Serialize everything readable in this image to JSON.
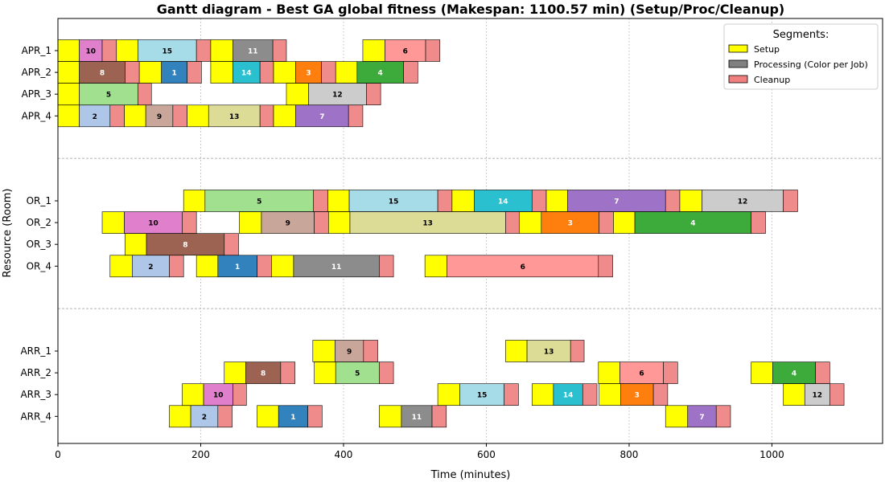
{
  "chart_data": {
    "type": "gantt",
    "title": "Gantt diagram - Best GA global fitness (Makespan: 1100.57 min) (Setup/Proc/Cleanup)",
    "xlabel": "Time (minutes)",
    "ylabel": "Resource (Room)",
    "xlim": [
      0,
      1155
    ],
    "xticks": [
      0,
      200,
      400,
      600,
      800,
      1000
    ],
    "grid": "vertical dotted",
    "legend": {
      "title": "Segments:",
      "placement": "top-right",
      "entries": [
        {
          "label": "Setup",
          "color": "#ffff00"
        },
        {
          "label": "Processing (Color per Job)",
          "color": "#808080"
        },
        {
          "label": "Cleanup",
          "color": "#f08080"
        }
      ]
    },
    "colors": {
      "setup": "#ffff00",
      "cleanup": "#f08b8b",
      "jobs": {
        "1": "#3182bd",
        "2": "#aec7e8",
        "3": "#ff7f0e",
        "4": "#3cab3c",
        "5": "#a0e08f",
        "6": "#ff9896",
        "7": "#9e72c6",
        "8": "#9c6352",
        "9": "#c9a69a",
        "10": "#e07fcc",
        "11": "#8c8c8c",
        "12": "#cccccc",
        "13": "#dcdc96",
        "14": "#2bc0cf",
        "15": "#a6dbe8"
      }
    },
    "resources": [
      "APR_1",
      "APR_2",
      "APR_3",
      "APR_4",
      "OR_1",
      "OR_2",
      "OR_3",
      "OR_4",
      "ARR_1",
      "ARR_2",
      "ARR_3",
      "ARR_4"
    ],
    "groups": [
      [
        "APR_1",
        "APR_2",
        "APR_3",
        "APR_4"
      ],
      [
        "OR_1",
        "OR_2",
        "OR_3",
        "OR_4"
      ],
      [
        "ARR_1",
        "ARR_2",
        "ARR_3",
        "ARR_4"
      ]
    ],
    "tasks": [
      {
        "resource": "APR_1",
        "job": "10",
        "setup": [
          0,
          30
        ],
        "proc": [
          30,
          62
        ],
        "cleanup": [
          62,
          82
        ]
      },
      {
        "resource": "APR_1",
        "job": "15",
        "setup": [
          82,
          112
        ],
        "proc": [
          112,
          194
        ],
        "cleanup": [
          194,
          214
        ]
      },
      {
        "resource": "APR_1",
        "job": "11",
        "setup": [
          214,
          245
        ],
        "proc": [
          245,
          301
        ],
        "cleanup": [
          301,
          320
        ]
      },
      {
        "resource": "APR_1",
        "job": "6",
        "setup": [
          427,
          458
        ],
        "proc": [
          458,
          515
        ],
        "cleanup": [
          515,
          535
        ]
      },
      {
        "resource": "APR_2",
        "job": "8",
        "setup": [
          0,
          30
        ],
        "proc": [
          30,
          94
        ],
        "cleanup": [
          94,
          114
        ]
      },
      {
        "resource": "APR_2",
        "job": "1",
        "setup": [
          114,
          145
        ],
        "proc": [
          145,
          181
        ],
        "cleanup": [
          181,
          201
        ]
      },
      {
        "resource": "APR_2",
        "job": "14",
        "setup": [
          214,
          245
        ],
        "proc": [
          245,
          283
        ],
        "cleanup": [
          283,
          302
        ]
      },
      {
        "resource": "APR_2",
        "job": "3",
        "setup": [
          302,
          333
        ],
        "proc": [
          333,
          369
        ],
        "cleanup": [
          369,
          389
        ]
      },
      {
        "resource": "APR_2",
        "job": "4",
        "setup": [
          389,
          419
        ],
        "proc": [
          419,
          484
        ],
        "cleanup": [
          484,
          504
        ]
      },
      {
        "resource": "APR_3",
        "job": "5",
        "setup": [
          0,
          30
        ],
        "proc": [
          30,
          112
        ],
        "cleanup": [
          112,
          131
        ]
      },
      {
        "resource": "APR_3",
        "job": "12",
        "setup": [
          320,
          351
        ],
        "proc": [
          351,
          432
        ],
        "cleanup": [
          432,
          452
        ]
      },
      {
        "resource": "APR_4",
        "job": "2",
        "setup": [
          0,
          30
        ],
        "proc": [
          30,
          73
        ],
        "cleanup": [
          73,
          93
        ]
      },
      {
        "resource": "APR_4",
        "job": "9",
        "setup": [
          93,
          123
        ],
        "proc": [
          123,
          161
        ],
        "cleanup": [
          161,
          181
        ]
      },
      {
        "resource": "APR_4",
        "job": "13",
        "setup": [
          181,
          211
        ],
        "proc": [
          211,
          283
        ],
        "cleanup": [
          283,
          302
        ]
      },
      {
        "resource": "APR_4",
        "job": "7",
        "setup": [
          302,
          333
        ],
        "proc": [
          333,
          407
        ],
        "cleanup": [
          407,
          427
        ]
      },
      {
        "resource": "OR_1",
        "job": "5",
        "setup": [
          176,
          206
        ],
        "proc": [
          206,
          358
        ],
        "cleanup": [
          358,
          378
        ]
      },
      {
        "resource": "OR_1",
        "job": "15",
        "setup": [
          378,
          408
        ],
        "proc": [
          408,
          532
        ],
        "cleanup": [
          532,
          552
        ]
      },
      {
        "resource": "OR_1",
        "job": "14",
        "setup": [
          552,
          583
        ],
        "proc": [
          583,
          664
        ],
        "cleanup": [
          664,
          684
        ]
      },
      {
        "resource": "OR_1",
        "job": "7",
        "setup": [
          684,
          714
        ],
        "proc": [
          714,
          851
        ],
        "cleanup": [
          851,
          871
        ]
      },
      {
        "resource": "OR_1",
        "job": "12",
        "setup": [
          871,
          902
        ],
        "proc": [
          902,
          1016
        ],
        "cleanup": [
          1016,
          1036
        ]
      },
      {
        "resource": "OR_2",
        "job": "10",
        "setup": [
          62,
          93
        ],
        "proc": [
          93,
          174
        ],
        "cleanup": [
          174,
          194
        ]
      },
      {
        "resource": "OR_2",
        "job": "9",
        "setup": [
          254,
          285
        ],
        "proc": [
          285,
          359
        ],
        "cleanup": [
          359,
          379
        ]
      },
      {
        "resource": "OR_2",
        "job": "13",
        "setup": [
          379,
          409
        ],
        "proc": [
          409,
          627
        ],
        "cleanup": [
          627,
          646
        ]
      },
      {
        "resource": "OR_2",
        "job": "3",
        "setup": [
          646,
          677
        ],
        "proc": [
          677,
          758
        ],
        "cleanup": [
          758,
          778
        ]
      },
      {
        "resource": "OR_2",
        "job": "4",
        "setup": [
          778,
          808
        ],
        "proc": [
          808,
          971
        ],
        "cleanup": [
          971,
          991
        ]
      },
      {
        "resource": "OR_3",
        "job": "8",
        "setup": [
          94,
          124
        ],
        "proc": [
          124,
          233
        ],
        "cleanup": [
          233,
          253
        ]
      },
      {
        "resource": "OR_4",
        "job": "2",
        "setup": [
          73,
          104
        ],
        "proc": [
          104,
          156
        ],
        "cleanup": [
          156,
          176
        ]
      },
      {
        "resource": "OR_4",
        "job": "1",
        "setup": [
          194,
          224
        ],
        "proc": [
          224,
          279
        ],
        "cleanup": [
          279,
          299
        ]
      },
      {
        "resource": "OR_4",
        "job": "11",
        "setup": [
          299,
          330
        ],
        "proc": [
          330,
          450
        ],
        "cleanup": [
          450,
          470
        ]
      },
      {
        "resource": "OR_4",
        "job": "6",
        "setup": [
          514,
          545
        ],
        "proc": [
          545,
          757
        ],
        "cleanup": [
          757,
          777
        ]
      },
      {
        "resource": "ARR_1",
        "job": "9",
        "setup": [
          357,
          388
        ],
        "proc": [
          388,
          428
        ],
        "cleanup": [
          428,
          448
        ]
      },
      {
        "resource": "ARR_1",
        "job": "13",
        "setup": [
          627,
          657
        ],
        "proc": [
          657,
          718
        ],
        "cleanup": [
          718,
          737
        ]
      },
      {
        "resource": "ARR_2",
        "job": "8",
        "setup": [
          233,
          263
        ],
        "proc": [
          263,
          312
        ],
        "cleanup": [
          312,
          332
        ]
      },
      {
        "resource": "ARR_2",
        "job": "5",
        "setup": [
          359,
          389
        ],
        "proc": [
          389,
          450
        ],
        "cleanup": [
          450,
          470
        ]
      },
      {
        "resource": "ARR_2",
        "job": "6",
        "setup": [
          757,
          787
        ],
        "proc": [
          787,
          848
        ],
        "cleanup": [
          848,
          868
        ]
      },
      {
        "resource": "ARR_2",
        "job": "4",
        "setup": [
          971,
          1001
        ],
        "proc": [
          1001,
          1061
        ],
        "cleanup": [
          1061,
          1081
        ]
      },
      {
        "resource": "ARR_3",
        "job": "10",
        "setup": [
          174,
          204
        ],
        "proc": [
          204,
          245
        ],
        "cleanup": [
          245,
          264
        ]
      },
      {
        "resource": "ARR_3",
        "job": "15",
        "setup": [
          532,
          563
        ],
        "proc": [
          563,
          625
        ],
        "cleanup": [
          625,
          645
        ]
      },
      {
        "resource": "ARR_3",
        "job": "14",
        "setup": [
          664,
          694
        ],
        "proc": [
          694,
          735
        ],
        "cleanup": [
          735,
          755
        ]
      },
      {
        "resource": "ARR_3",
        "job": "3",
        "setup": [
          758,
          788
        ],
        "proc": [
          788,
          834
        ],
        "cleanup": [
          834,
          854
        ]
      },
      {
        "resource": "ARR_3",
        "job": "12",
        "setup": [
          1016,
          1046
        ],
        "proc": [
          1046,
          1081
        ],
        "cleanup": [
          1081,
          1101
        ]
      },
      {
        "resource": "ARR_4",
        "job": "2",
        "setup": [
          156,
          186
        ],
        "proc": [
          186,
          224
        ],
        "cleanup": [
          224,
          244
        ]
      },
      {
        "resource": "ARR_4",
        "job": "1",
        "setup": [
          279,
          309
        ],
        "proc": [
          309,
          350
        ],
        "cleanup": [
          350,
          370
        ]
      },
      {
        "resource": "ARR_4",
        "job": "11",
        "setup": [
          450,
          481
        ],
        "proc": [
          481,
          524
        ],
        "cleanup": [
          524,
          544
        ]
      },
      {
        "resource": "ARR_4",
        "job": "7",
        "setup": [
          851,
          882
        ],
        "proc": [
          882,
          922
        ],
        "cleanup": [
          922,
          942
        ]
      }
    ]
  }
}
